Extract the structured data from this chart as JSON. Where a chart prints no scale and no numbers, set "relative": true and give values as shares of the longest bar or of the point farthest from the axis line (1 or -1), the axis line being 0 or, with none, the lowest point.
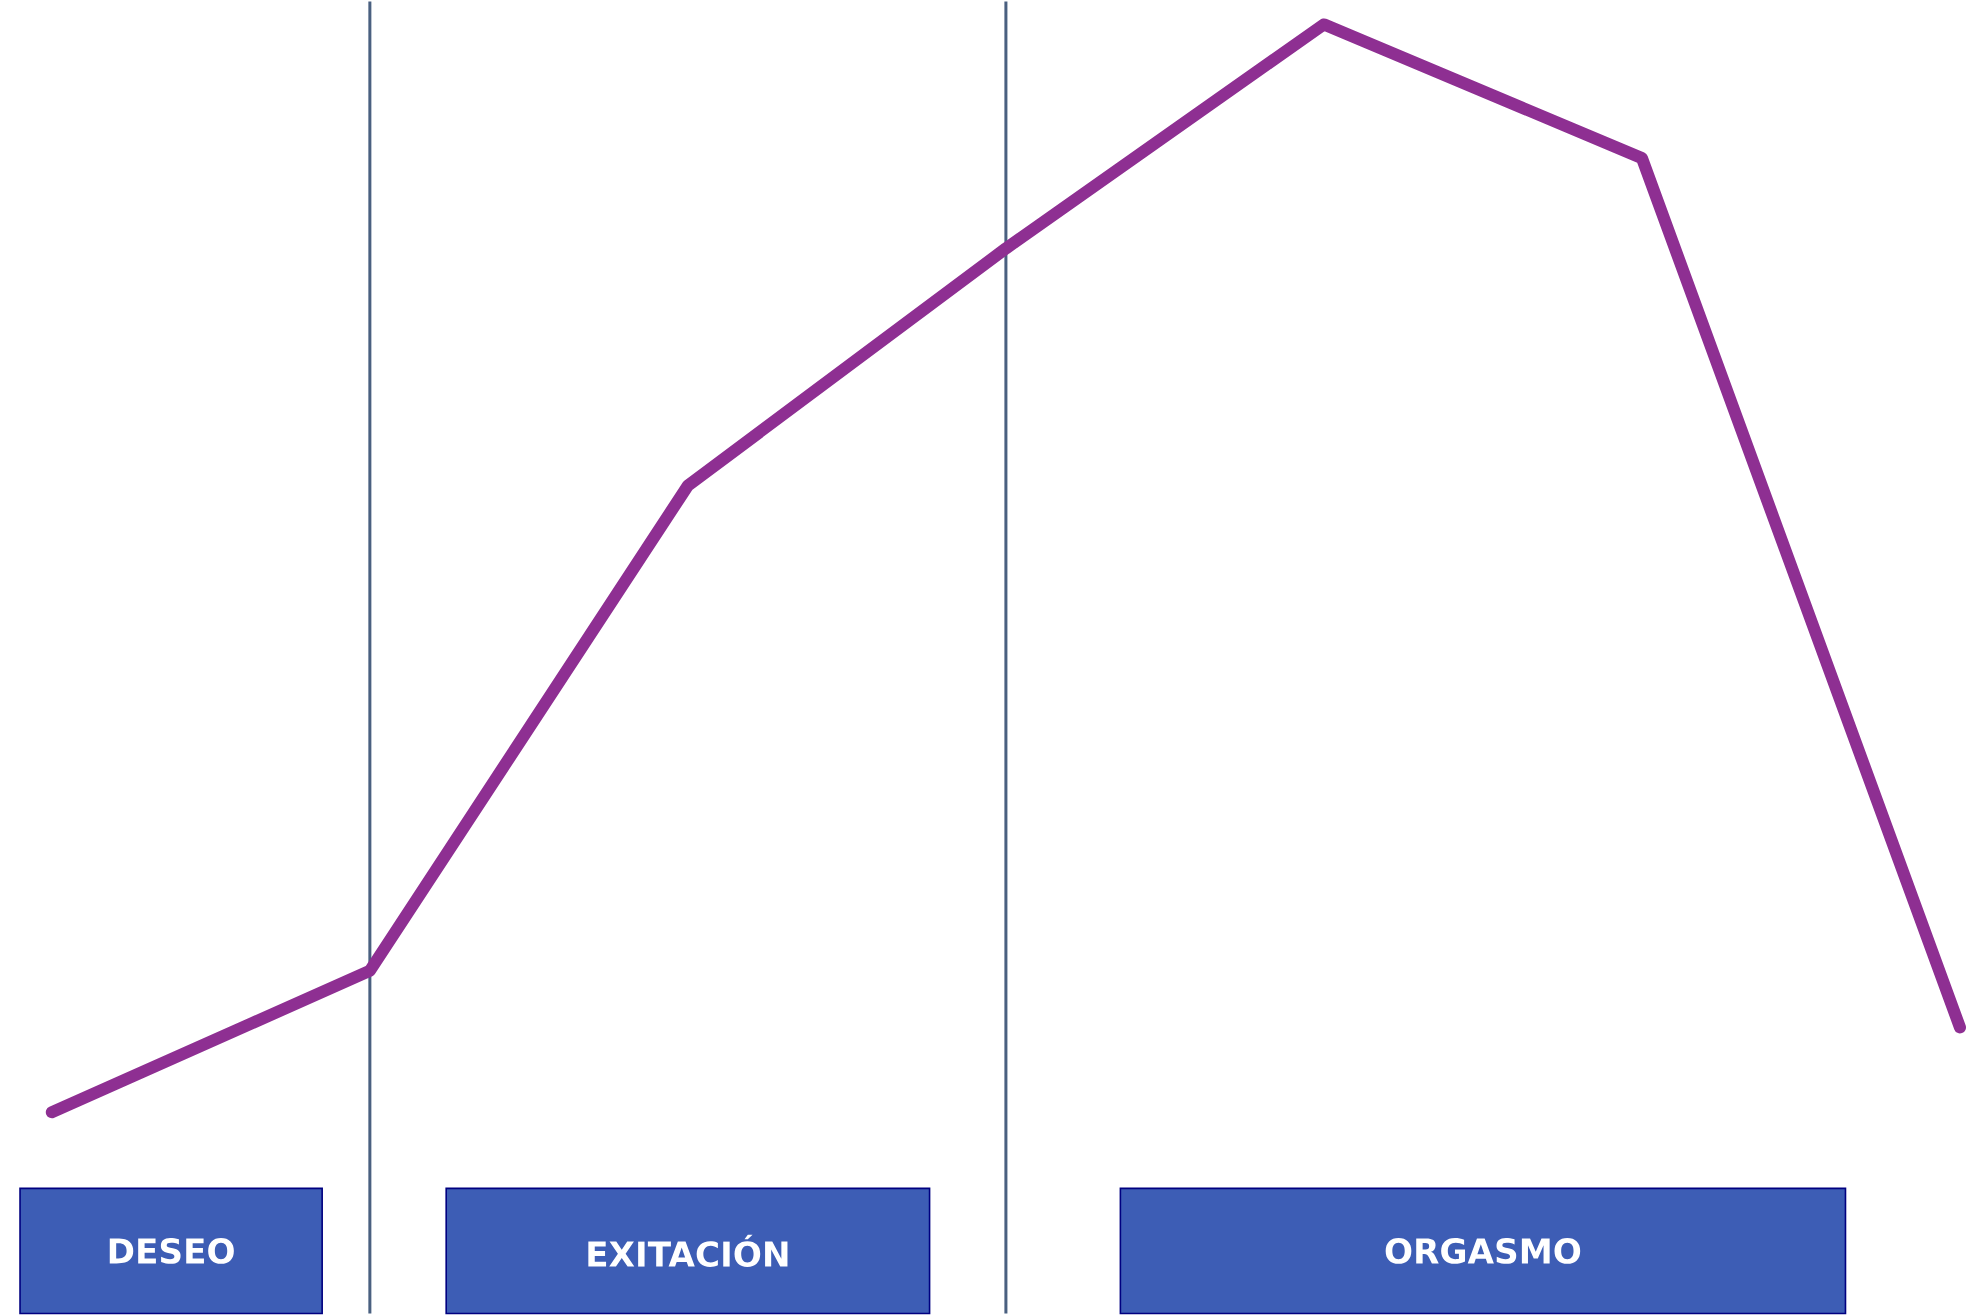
{
  "chart_data": {
    "type": "line",
    "relative": true,
    "marker": "none",
    "line_style": "solid",
    "categories": [
      null,
      null,
      null,
      null,
      null,
      null,
      null
    ],
    "series": [
      {
        "color": "#8e2f92",
        "values": [
          0,
          0.13,
          0.576,
          0.794,
          1,
          0.877,
          0.078
        ]
      }
    ],
    "annotations": [
      "DESEO",
      "EXITACIÓN",
      "ORGASMO"
    ]
  }
}
